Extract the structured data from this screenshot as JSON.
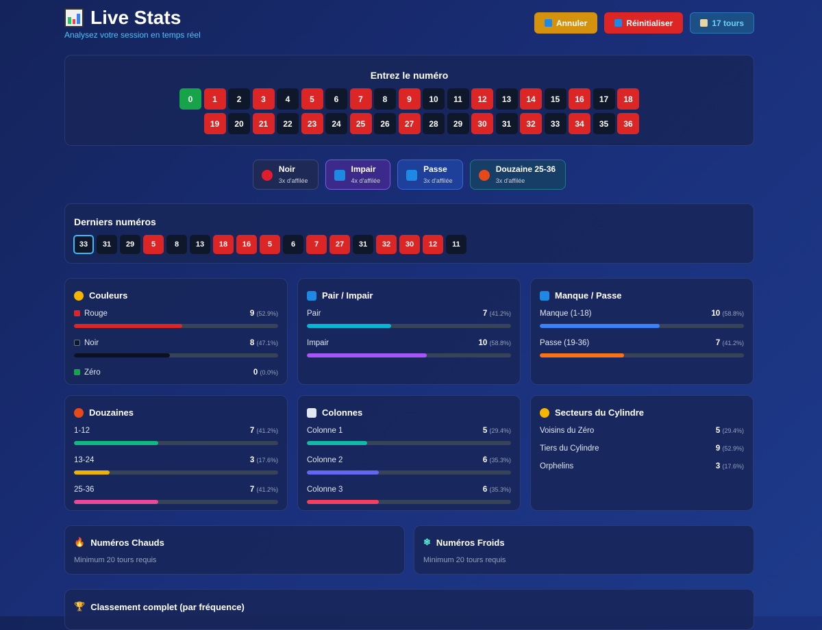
{
  "header": {
    "title": "Live Stats",
    "subtitle": "Analysez votre session en temps réel",
    "icon": "bar-chart-icon",
    "buttons": {
      "undo": "Annuler",
      "reset": "Réinitialiser",
      "tours": "17 tours"
    }
  },
  "pad": {
    "title": "Entrez le numéro",
    "red": [
      1,
      3,
      5,
      7,
      9,
      12,
      14,
      16,
      18,
      19,
      21,
      23,
      25,
      27,
      30,
      32,
      34,
      36
    ]
  },
  "streaks": [
    {
      "label": "Noir",
      "sub": "3x d'affilée",
      "icon": "red-circle-icon",
      "bg": "#1e2a55",
      "border": "#3a4a7a",
      "ic": "#e11d2b"
    },
    {
      "label": "Impair",
      "sub": "4x d'affilée",
      "icon": "grid-icon",
      "bg": "#3b2a8a",
      "border": "#7c5ce0",
      "ic": "#1e88e5"
    },
    {
      "label": "Passe",
      "sub": "3x d'affilée",
      "icon": "up-down-arrow-icon",
      "bg": "#1e3f9a",
      "border": "#3a68d0",
      "ic": "#1e88e5"
    },
    {
      "label": "Douzaine 25-36",
      "sub": "3x d'affilée",
      "icon": "target-icon",
      "bg": "#163e66",
      "border": "#1f7a8a",
      "ic": "#e64a19"
    }
  ],
  "recent": {
    "title": "Derniers numéros",
    "numbers": [
      33,
      31,
      29,
      5,
      8,
      13,
      18,
      16,
      5,
      6,
      7,
      27,
      31,
      32,
      30,
      12,
      11
    ]
  },
  "stats": [
    {
      "title": "Couleurs",
      "icon": "palette-icon",
      "ic": "#f5b400",
      "rows": [
        {
          "label": "Rouge",
          "count": "9",
          "pct": "(52.9%)",
          "value": 52.9,
          "color": "#dc2626",
          "dot": "#dc2626"
        },
        {
          "label": "Noir",
          "count": "8",
          "pct": "(47.1%)",
          "value": 47.1,
          "color": "#0b1120",
          "dot": "#0f172a"
        },
        {
          "label": "Zéro",
          "count": "0",
          "pct": "(0.0%)",
          "value": 0,
          "color": "#16a34a",
          "dot": "#16a34a",
          "nobar": true
        }
      ]
    },
    {
      "title": "Pair / Impair",
      "icon": "grid-icon",
      "ic": "#1e88e5",
      "rows": [
        {
          "label": "Pair",
          "count": "7",
          "pct": "(41.2%)",
          "value": 41.2,
          "color": "#06b6d4"
        },
        {
          "label": "Impair",
          "count": "10",
          "pct": "(58.8%)",
          "value": 58.8,
          "color": "#a855f7"
        }
      ]
    },
    {
      "title": "Manque / Passe",
      "icon": "up-down-arrow-icon",
      "ic": "#1e88e5",
      "rows": [
        {
          "label": "Manque (1-18)",
          "count": "10",
          "pct": "(58.8%)",
          "value": 58.8,
          "color": "#3b82f6"
        },
        {
          "label": "Passe (19-36)",
          "count": "7",
          "pct": "(41.2%)",
          "value": 41.2,
          "color": "#f97316"
        }
      ]
    },
    {
      "title": "Douzaines",
      "icon": "target-icon",
      "ic": "#e64a19",
      "rows": [
        {
          "label": "1-12",
          "count": "7",
          "pct": "(41.2%)",
          "value": 41.2,
          "color": "#10b981"
        },
        {
          "label": "13-24",
          "count": "3",
          "pct": "(17.6%)",
          "value": 17.6,
          "color": "#eab308"
        },
        {
          "label": "25-36",
          "count": "7",
          "pct": "(41.2%)",
          "value": 41.2,
          "color": "#ec4899"
        }
      ]
    },
    {
      "title": "Colonnes",
      "icon": "bar-chart-icon",
      "ic": "#e2e8f0",
      "rows": [
        {
          "label": "Colonne 1",
          "count": "5",
          "pct": "(29.4%)",
          "value": 29.4,
          "color": "#14b8a6"
        },
        {
          "label": "Colonne 2",
          "count": "6",
          "pct": "(35.3%)",
          "value": 35.3,
          "color": "#6366f1"
        },
        {
          "label": "Colonne 3",
          "count": "6",
          "pct": "(35.3%)",
          "value": 35.3,
          "color": "#f43f5e"
        }
      ]
    },
    {
      "title": "Secteurs du Cylindre",
      "icon": "wheel-icon",
      "ic": "#f5b400",
      "sector": true,
      "rows": [
        {
          "label": "Voisins du Zéro",
          "count": "5",
          "pct": "(29.4%)",
          "nobar": true
        },
        {
          "label": "Tiers du Cylindre",
          "count": "9",
          "pct": "(52.9%)",
          "nobar": true
        },
        {
          "label": "Orphelins",
          "count": "3",
          "pct": "(17.6%)",
          "nobar": true
        }
      ]
    }
  ],
  "hot": {
    "title": "Numéros Chauds",
    "icon": "fire-icon",
    "text": "Minimum 20 tours requis"
  },
  "cold": {
    "title": "Numéros Froids",
    "icon": "snowflake-icon",
    "text": "Minimum 20 tours requis"
  },
  "ranking": {
    "title": "Classement complet (par fréquence)",
    "icon": "trophy-icon"
  }
}
